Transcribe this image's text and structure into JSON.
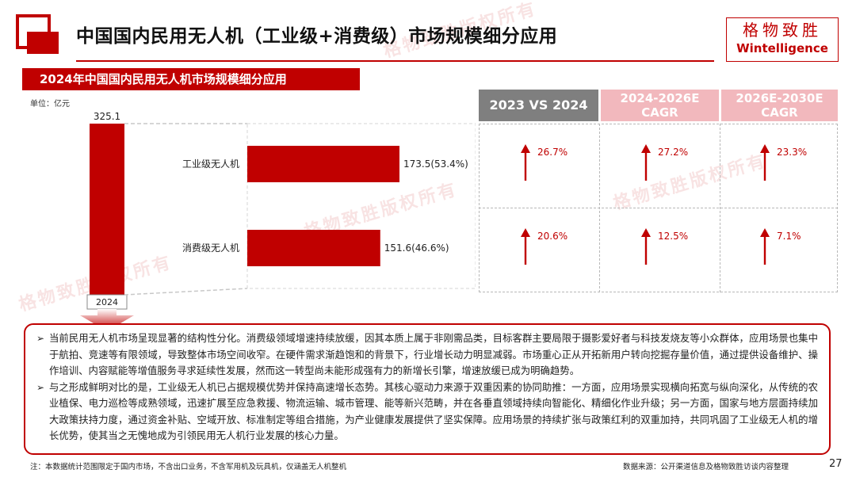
{
  "header": {
    "title": "中国国内民用无人机（工业级+消费级）市场规模细分应用",
    "brand_cn": "格物致胜",
    "brand_en": "Wintelligence",
    "watermark": "格物致胜版权所有",
    "accent_color": "#c00000"
  },
  "chart_data": {
    "type": "bar",
    "title": "2024年中国国内民用无人机市场规模细分应用",
    "unit": "单位：亿元",
    "total": {
      "category": "2024",
      "value": 325.1,
      "label": "325.1"
    },
    "categories": [
      "工业级无人机",
      "消费级无人机"
    ],
    "values": [
      173.5,
      151.6
    ],
    "value_labels": [
      "173.5(53.4%)",
      "151.6(46.6%)"
    ],
    "shares": [
      53.4,
      46.6
    ],
    "bar_color": "#c00000"
  },
  "growth_table": {
    "headers": [
      "2023 VS 2024",
      "2024-2026E CAGR",
      "2026E-2030E CAGR"
    ],
    "header_colors": [
      "#7f7f7f",
      "#f2b8bd",
      "#f2b8bd"
    ],
    "rows": [
      {
        "name": "工业级无人机",
        "values": [
          "26.7%",
          "27.2%",
          "23.3%"
        ]
      },
      {
        "name": "消费级无人机",
        "values": [
          "20.6%",
          "12.5%",
          "7.1%"
        ]
      }
    ],
    "arrow_icon": "up-arrow-icon"
  },
  "analysis": {
    "bullets": [
      "当前民用无人机市场呈现显著的结构性分化。消费级领域增速持续放缓，因其本质上属于非刚需品类，目标客群主要局限于摄影爱好者与科技发烧友等小众群体，应用场景也集中于航拍、竞速等有限领域，导致整体市场空间收窄。在硬件需求渐趋饱和的背景下，行业增长动力明显减弱。市场重心正从开拓新用户转向挖掘存量价值，通过提供设备维护、操作培训、内容赋能等增值服务寻求延续性发展，然而这一转型尚未能形成强有力的新增长引擎，增速放缓已成为明确趋势。",
      "与之形成鲜明对比的是，工业级无人机已占据规模优势并保持高速增长态势。其核心驱动力来源于双重因素的协同助推：一方面，应用场景实现横向拓宽与纵向深化，从传统的农业植保、电力巡检等成熟领域，迅速扩展至应急救援、物流运输、城市管理、能等新兴范畴，并在各垂直领域持续向智能化、精细化作业升级；另一方面，国家与地方层面持续加大政策扶持力度，通过资金补贴、空域开放、标准制定等组合措施，为产业健康发展提供了坚实保障。应用场景的持续扩张与政策红利的双重加持，共同巩固了工业级无人机的增长优势，使其当之无愧地成为引领民用无人机行业发展的核心力量。"
    ],
    "bullet_icon": "➢"
  },
  "footer": {
    "note": "注：本数据统计范围限定于国内市场，不含出口业务，不含军用机及玩具机，仅涵盖无人机整机",
    "source": "数据来源：公开渠道信息及格物致胜访谈内容整理",
    "page_number": "27"
  }
}
